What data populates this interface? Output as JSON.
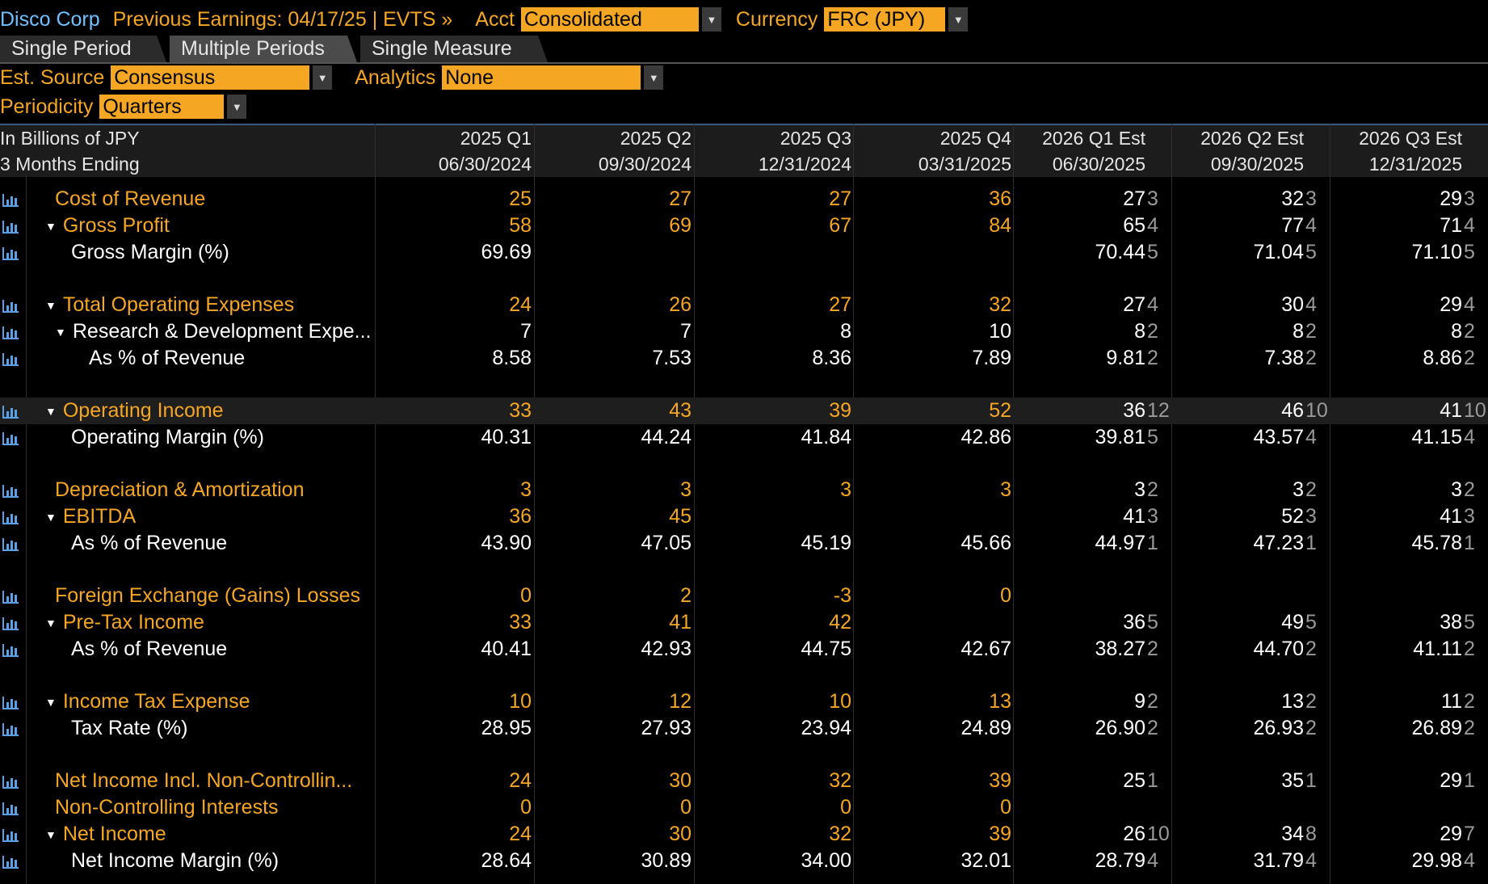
{
  "header": {
    "security": "Disco Corp",
    "earnings": "Previous Earnings: 04/17/25 | EVTS »",
    "acct_label": "Acct",
    "acct_value": "Consolidated",
    "currency_label": "Currency",
    "currency_value": "FRC (JPY)"
  },
  "tabs": [
    {
      "label": "Single Period"
    },
    {
      "label": "Multiple Periods"
    },
    {
      "label": "Single Measure"
    }
  ],
  "controls": {
    "est_source_label": "Est. Source",
    "est_source_value": "Consensus",
    "analytics_label": "Analytics",
    "analytics_value": "None",
    "periodicity_label": "Periodicity",
    "periodicity_value": "Quarters"
  },
  "table": {
    "unit_label": "In Billions of JPY",
    "ending_label": "3 Months Ending",
    "columns": [
      {
        "period": "2025 Q1",
        "date": "06/30/2024"
      },
      {
        "period": "2025 Q2",
        "date": "09/30/2024"
      },
      {
        "period": "2025 Q3",
        "date": "12/31/2024"
      },
      {
        "period": "2025 Q4",
        "date": "03/31/2025"
      },
      {
        "period": "2026 Q1 Est",
        "date": "06/30/2025"
      },
      {
        "period": "2026 Q2 Est",
        "date": "09/30/2025"
      },
      {
        "period": "2026 Q3 Est",
        "date": "12/31/2025"
      }
    ],
    "rows": [
      {
        "label": "Cost of Revenue",
        "indent": 0,
        "tri": false,
        "color": "#f5a623",
        "values": [
          "25",
          "27",
          "27",
          "36",
          "27",
          "32",
          "29"
        ],
        "counts": [
          "",
          "",
          "",
          "",
          "3",
          "3",
          "3"
        ]
      },
      {
        "label": "Gross Profit",
        "indent": 0,
        "tri": true,
        "color": "#f5a623",
        "values": [
          "58",
          "69",
          "67",
          "84",
          "65",
          "77",
          "71"
        ],
        "counts": [
          "",
          "",
          "",
          "",
          "4",
          "4",
          "4"
        ]
      },
      {
        "label": "Gross Margin (%)",
        "indent": 1,
        "tri": false,
        "color": "#ffffff",
        "values": [
          "69.69",
          "",
          "",
          "",
          "70.44",
          "71.04",
          "71.10"
        ],
        "counts": [
          "",
          "",
          "",
          "",
          "5",
          "5",
          "5"
        ]
      },
      {
        "gap": true
      },
      {
        "label": "Total Operating Expenses",
        "indent": 0,
        "tri": true,
        "color": "#f5a623",
        "values": [
          "24",
          "26",
          "27",
          "32",
          "27",
          "30",
          "29"
        ],
        "counts": [
          "",
          "",
          "",
          "",
          "4",
          "4",
          "4"
        ]
      },
      {
        "label": "Research & Development Expe...",
        "indent": 1,
        "tri": true,
        "color": "#ffffff",
        "values": [
          "7",
          "7",
          "8",
          "10",
          "8",
          "8",
          "8"
        ],
        "counts": [
          "",
          "",
          "",
          "",
          "2",
          "2",
          "2"
        ]
      },
      {
        "label": "As % of Revenue",
        "indent": 2,
        "tri": false,
        "color": "#ffffff",
        "values": [
          "8.58",
          "7.53",
          "8.36",
          "7.89",
          "9.81",
          "7.38",
          "8.86"
        ],
        "counts": [
          "",
          "",
          "",
          "",
          "2",
          "2",
          "2"
        ]
      },
      {
        "gap": true
      },
      {
        "label": "Operating Income",
        "indent": 0,
        "tri": true,
        "color": "#f5a623",
        "highlight": true,
        "values": [
          "33",
          "43",
          "39",
          "52",
          "36",
          "46",
          "41"
        ],
        "counts": [
          "",
          "",
          "",
          "",
          "12",
          "10",
          "10"
        ]
      },
      {
        "label": "Operating Margin (%)",
        "indent": 1,
        "tri": false,
        "color": "#ffffff",
        "values": [
          "40.31",
          "44.24",
          "41.84",
          "42.86",
          "39.81",
          "43.57",
          "41.15"
        ],
        "counts": [
          "",
          "",
          "",
          "",
          "5",
          "4",
          "4"
        ]
      },
      {
        "gap": true
      },
      {
        "label": "Depreciation & Amortization",
        "indent": 0,
        "tri": false,
        "color": "#f5a623",
        "values": [
          "3",
          "3",
          "3",
          "3",
          "3",
          "3",
          "3"
        ],
        "counts": [
          "",
          "",
          "",
          "",
          "2",
          "2",
          "2"
        ]
      },
      {
        "label": "EBITDA",
        "indent": 0,
        "tri": true,
        "color": "#f5a623",
        "values": [
          "36",
          "45",
          "",
          "",
          "41",
          "52",
          "41"
        ],
        "counts": [
          "",
          "",
          "",
          "",
          "3",
          "3",
          "3"
        ]
      },
      {
        "label": "As % of Revenue",
        "indent": 1,
        "tri": false,
        "color": "#ffffff",
        "values": [
          "43.90",
          "47.05",
          "45.19",
          "45.66",
          "44.97",
          "47.23",
          "45.78"
        ],
        "counts": [
          "",
          "",
          "",
          "",
          "1",
          "1",
          "1"
        ]
      },
      {
        "gap": true
      },
      {
        "label": "Foreign Exchange (Gains) Losses",
        "indent": 0,
        "tri": false,
        "color": "#f5a623",
        "values": [
          "0",
          "2",
          "-3",
          "0",
          "",
          "",
          ""
        ],
        "counts": [
          "",
          "",
          "",
          "",
          "",
          "",
          ""
        ]
      },
      {
        "label": "Pre-Tax Income",
        "indent": 0,
        "tri": true,
        "color": "#f5a623",
        "values": [
          "33",
          "41",
          "42",
          "",
          "36",
          "49",
          "38"
        ],
        "counts": [
          "",
          "",
          "",
          "",
          "5",
          "5",
          "5"
        ]
      },
      {
        "label": "As % of Revenue",
        "indent": 1,
        "tri": false,
        "color": "#ffffff",
        "values": [
          "40.41",
          "42.93",
          "44.75",
          "42.67",
          "38.27",
          "44.70",
          "41.11"
        ],
        "counts": [
          "",
          "",
          "",
          "",
          "2",
          "2",
          "2"
        ]
      },
      {
        "gap": true
      },
      {
        "label": "Income Tax Expense",
        "indent": 0,
        "tri": true,
        "color": "#f5a623",
        "values": [
          "10",
          "12",
          "10",
          "13",
          "9",
          "13",
          "11"
        ],
        "counts": [
          "",
          "",
          "",
          "",
          "2",
          "2",
          "2"
        ]
      },
      {
        "label": "Tax Rate (%)",
        "indent": 1,
        "tri": false,
        "color": "#ffffff",
        "values": [
          "28.95",
          "27.93",
          "23.94",
          "24.89",
          "26.90",
          "26.93",
          "26.89"
        ],
        "counts": [
          "",
          "",
          "",
          "",
          "2",
          "2",
          "2"
        ]
      },
      {
        "gap": true
      },
      {
        "label": "Net Income Incl. Non-Controllin...",
        "indent": 0,
        "tri": false,
        "color": "#f5a623",
        "values": [
          "24",
          "30",
          "32",
          "39",
          "25",
          "35",
          "29"
        ],
        "counts": [
          "",
          "",
          "",
          "",
          "1",
          "1",
          "1"
        ]
      },
      {
        "label": "Non-Controlling Interests",
        "indent": 0,
        "tri": false,
        "color": "#f5a623",
        "values": [
          "0",
          "0",
          "0",
          "0",
          "",
          "",
          ""
        ],
        "counts": [
          "",
          "",
          "",
          "",
          "",
          "",
          ""
        ]
      },
      {
        "label": "Net Income",
        "indent": 0,
        "tri": true,
        "color": "#f5a623",
        "values": [
          "24",
          "30",
          "32",
          "39",
          "26",
          "34",
          "29"
        ],
        "counts": [
          "",
          "",
          "",
          "",
          "10",
          "8",
          "7"
        ]
      },
      {
        "label": "Net Income Margin (%)",
        "indent": 1,
        "tri": false,
        "color": "#ffffff",
        "values": [
          "28.64",
          "30.89",
          "34.00",
          "32.01",
          "28.79",
          "31.79",
          "29.98"
        ],
        "counts": [
          "",
          "",
          "",
          "",
          "4",
          "4",
          "4"
        ]
      }
    ]
  }
}
